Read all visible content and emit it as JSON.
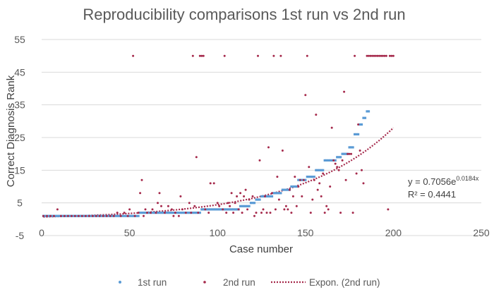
{
  "chart_data": {
    "type": "scatter",
    "title": "Reproducibility comparisons 1st run vs 2nd run",
    "xlabel": "Case number",
    "ylabel": "Correct Diagnosis Rank",
    "xlim": [
      0,
      250
    ],
    "ylim": [
      -5,
      55
    ],
    "x_ticks": [
      0,
      50,
      100,
      150,
      200,
      250
    ],
    "y_ticks": [
      -5,
      5,
      15,
      25,
      35,
      45,
      55
    ],
    "grid": "horizontal",
    "colors": {
      "run1": "#5B9BD5",
      "run2": "#A5294B",
      "trend": "#A5294B",
      "grid": "#D9D9D9"
    },
    "trendline": {
      "name": "Expon. (2nd run)",
      "a": 0.7056,
      "b": 0.0184,
      "x_range": [
        1,
        200
      ],
      "equation_prefix": "y = 0.7056e",
      "equation_exponent": "0.0184x",
      "r_squared_text": "R² = 0.4441"
    },
    "legend": [
      "1st run",
      "2nd run",
      "Expon. (2nd run)"
    ],
    "series": [
      {
        "name": "1st run",
        "description": "sorted ascending by case number; one point per case",
        "segments": [
          {
            "x_start": 1,
            "x_end": 55,
            "value": 1
          },
          {
            "x_start": 56,
            "x_end": 90,
            "value": 2
          },
          {
            "x_start": 91,
            "x_end": 112,
            "value": 3
          },
          {
            "x_start": 113,
            "x_end": 118,
            "value": 4
          },
          {
            "x_start": 119,
            "x_end": 121,
            "value": 5
          },
          {
            "x_start": 122,
            "x_end": 124,
            "value": 6
          },
          {
            "x_start": 125,
            "x_end": 131,
            "value": 7
          },
          {
            "x_start": 132,
            "x_end": 136,
            "value": 8
          },
          {
            "x_start": 137,
            "x_end": 141,
            "value": 9
          },
          {
            "x_start": 142,
            "x_end": 145,
            "value": 10
          },
          {
            "x_start": 146,
            "x_end": 150,
            "value": 12
          },
          {
            "x_start": 151,
            "x_end": 155,
            "value": 13
          },
          {
            "x_start": 156,
            "x_end": 160,
            "value": 15
          },
          {
            "x_start": 161,
            "x_end": 163,
            "value": 18
          },
          {
            "x_start": 164,
            "x_end": 167,
            "value": 18
          },
          {
            "x_start": 168,
            "x_end": 170,
            "value": 19
          },
          {
            "x_start": 171,
            "x_end": 174,
            "value": 20
          },
          {
            "x_start": 175,
            "x_end": 177,
            "value": 22
          },
          {
            "x_start": 178,
            "x_end": 180,
            "value": 26
          },
          {
            "x_start": 181,
            "x_end": 182,
            "value": 29
          },
          {
            "x_start": 183,
            "x_end": 184,
            "value": 31
          },
          {
            "x_start": 185,
            "x_end": 186,
            "value": 33
          }
        ]
      },
      {
        "name": "2nd run",
        "points": [
          [
            1,
            1
          ],
          [
            3,
            1
          ],
          [
            5,
            1
          ],
          [
            7,
            1
          ],
          [
            9,
            3
          ],
          [
            11,
            1
          ],
          [
            13,
            1
          ],
          [
            15,
            1
          ],
          [
            17,
            1
          ],
          [
            19,
            1
          ],
          [
            21,
            1
          ],
          [
            23,
            1
          ],
          [
            25,
            1
          ],
          [
            27,
            1
          ],
          [
            29,
            1
          ],
          [
            31,
            1
          ],
          [
            33,
            1
          ],
          [
            35,
            1
          ],
          [
            37,
            1
          ],
          [
            39,
            1
          ],
          [
            41,
            1
          ],
          [
            43,
            2
          ],
          [
            45,
            1
          ],
          [
            47,
            2
          ],
          [
            49,
            1
          ],
          [
            50,
            3
          ],
          [
            52,
            50
          ],
          [
            53,
            1
          ],
          [
            55,
            2
          ],
          [
            56,
            8
          ],
          [
            57,
            12
          ],
          [
            58,
            1
          ],
          [
            59,
            3
          ],
          [
            60,
            2
          ],
          [
            62,
            2
          ],
          [
            63,
            3
          ],
          [
            65,
            2
          ],
          [
            66,
            5
          ],
          [
            67,
            8
          ],
          [
            68,
            4
          ],
          [
            70,
            2
          ],
          [
            72,
            4
          ],
          [
            74,
            3
          ],
          [
            75,
            1
          ],
          [
            76,
            2
          ],
          [
            78,
            1
          ],
          [
            79,
            7
          ],
          [
            80,
            3
          ],
          [
            82,
            2
          ],
          [
            84,
            5
          ],
          [
            85,
            2
          ],
          [
            86,
            50
          ],
          [
            87,
            4
          ],
          [
            88,
            19
          ],
          [
            89,
            2
          ],
          [
            90,
            50
          ],
          [
            91,
            50
          ],
          [
            92,
            50
          ],
          [
            93,
            3
          ],
          [
            95,
            2
          ],
          [
            96,
            11
          ],
          [
            98,
            11
          ],
          [
            100,
            5
          ],
          [
            101,
            4
          ],
          [
            103,
            3
          ],
          [
            104,
            50
          ],
          [
            105,
            2
          ],
          [
            106,
            5
          ],
          [
            107,
            4
          ],
          [
            108,
            8
          ],
          [
            109,
            2
          ],
          [
            110,
            5
          ],
          [
            111,
            7
          ],
          [
            112,
            3
          ],
          [
            113,
            8
          ],
          [
            114,
            2
          ],
          [
            115,
            7
          ],
          [
            116,
            9
          ],
          [
            117,
            3
          ],
          [
            118,
            6
          ],
          [
            120,
            7
          ],
          [
            121,
            1
          ],
          [
            122,
            2
          ],
          [
            123,
            50
          ],
          [
            124,
            18
          ],
          [
            125,
            2
          ],
          [
            126,
            3
          ],
          [
            127,
            7
          ],
          [
            128,
            2
          ],
          [
            129,
            22
          ],
          [
            130,
            2
          ],
          [
            131,
            8
          ],
          [
            132,
            50
          ],
          [
            133,
            3
          ],
          [
            134,
            13
          ],
          [
            135,
            6
          ],
          [
            136,
            50
          ],
          [
            137,
            21
          ],
          [
            138,
            3
          ],
          [
            139,
            4
          ],
          [
            140,
            3
          ],
          [
            141,
            9
          ],
          [
            142,
            2
          ],
          [
            143,
            7
          ],
          [
            144,
            13
          ],
          [
            145,
            4
          ],
          [
            146,
            10
          ],
          [
            147,
            12
          ],
          [
            148,
            7
          ],
          [
            149,
            12
          ],
          [
            150,
            38
          ],
          [
            151,
            50
          ],
          [
            152,
            16
          ],
          [
            153,
            2
          ],
          [
            154,
            6
          ],
          [
            155,
            12
          ],
          [
            156,
            32
          ],
          [
            157,
            9
          ],
          [
            158,
            11
          ],
          [
            159,
            7
          ],
          [
            160,
            14
          ],
          [
            161,
            2
          ],
          [
            162,
            4
          ],
          [
            163,
            3
          ],
          [
            164,
            10
          ],
          [
            165,
            28
          ],
          [
            166,
            18
          ],
          [
            167,
            17
          ],
          [
            168,
            16
          ],
          [
            169,
            15
          ],
          [
            170,
            2
          ],
          [
            171,
            18
          ],
          [
            172,
            39
          ],
          [
            173,
            12
          ],
          [
            174,
            20
          ],
          [
            175,
            20
          ],
          [
            176,
            20
          ],
          [
            177,
            2
          ],
          [
            178,
            50
          ],
          [
            179,
            14
          ],
          [
            180,
            29
          ],
          [
            181,
            21
          ],
          [
            182,
            15
          ],
          [
            183,
            11
          ],
          [
            185,
            50
          ],
          [
            186,
            50
          ],
          [
            187,
            50
          ],
          [
            188,
            50
          ],
          [
            189,
            50
          ],
          [
            190,
            50
          ],
          [
            191,
            50
          ],
          [
            192,
            50
          ],
          [
            193,
            50
          ],
          [
            194,
            50
          ],
          [
            195,
            50
          ],
          [
            196,
            50
          ],
          [
            197,
            3
          ],
          [
            198,
            50
          ],
          [
            199,
            50
          ],
          [
            200,
            50
          ]
        ]
      }
    ]
  }
}
